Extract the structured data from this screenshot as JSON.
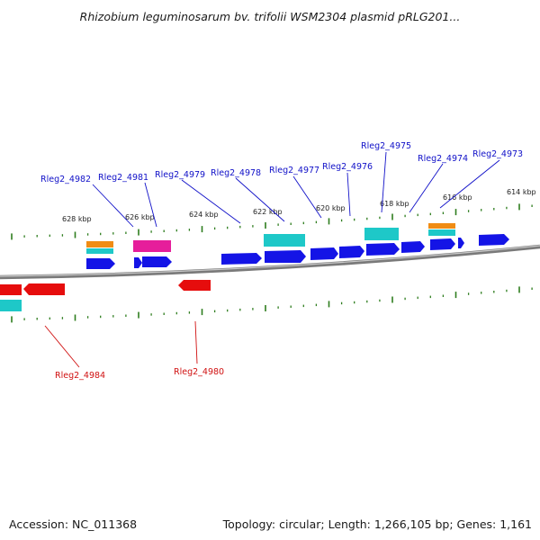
{
  "title": "Rhizobium leguminosarum bv. trifolii WSM2304 plasmid pRLG201...",
  "accession": "Accession: NC_011368",
  "summary": "Topology: circular; Length: 1,266,105 bp; Genes: 1,161",
  "colors": {
    "backbone": "#8c8c8c",
    "tick": "#2e7d1e",
    "cds_forward": "#1414e6",
    "cds_reverse": "#e60d0d",
    "feature_cyan": "#1ec8c8",
    "feature_orange": "#f08c14",
    "feature_magenta": "#e61e9b",
    "label_forward": "#1010c8",
    "label_reverse": "#d01010"
  },
  "kbp_labels": [
    "628 kbp",
    "626 kbp",
    "624 kbp",
    "622 kbp",
    "620 kbp",
    "618 kbp",
    "616 kbp",
    "614 kbp"
  ],
  "gene_labels_forward": [
    "Rleg2_4982",
    "Rleg2_4981",
    "Rleg2_4979",
    "Rleg2_4978",
    "Rleg2_4977",
    "Rleg2_4976",
    "Rleg2_4975",
    "Rleg2_4974",
    "Rleg2_4973"
  ],
  "gene_labels_reverse": [
    "Rleg2_4984",
    "Rleg2_4980"
  ]
}
